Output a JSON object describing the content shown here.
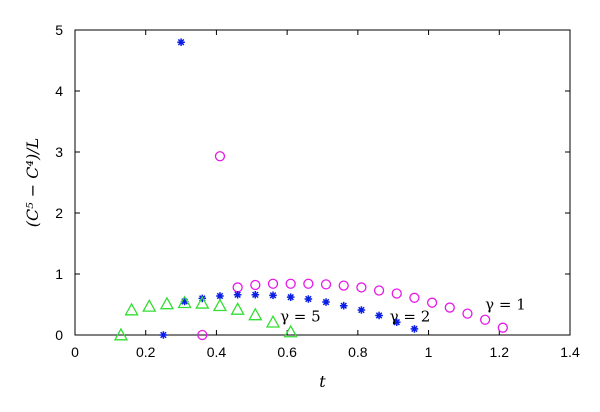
{
  "chart_data": {
    "type": "scatter",
    "title": "",
    "xlabel": "t",
    "ylabel": "(C⁵ − C⁴)/L",
    "xlim": [
      0,
      1.4
    ],
    "ylim": [
      0,
      5
    ],
    "x_ticks": [
      0,
      0.2,
      0.4,
      0.6,
      0.8,
      1,
      1.2,
      1.4
    ],
    "x_tick_labels": [
      "0",
      "0.2",
      "0.4",
      "0.6",
      "0.8",
      "1",
      "1.2",
      "1.4"
    ],
    "y_ticks": [
      0,
      1,
      2,
      3,
      4,
      5
    ],
    "y_tick_labels": [
      "0",
      "1",
      "2",
      "3",
      "4",
      "5"
    ],
    "grid": false,
    "series": [
      {
        "label": "γ = 1",
        "marker": "circle",
        "color": "#e619e6",
        "x": [
          0.36,
          0.41,
          0.46,
          0.51,
          0.56,
          0.61,
          0.66,
          0.71,
          0.76,
          0.81,
          0.86,
          0.91,
          0.96,
          1.01,
          1.06,
          1.11,
          1.16,
          1.21
        ],
        "y": [
          0.0,
          2.93,
          0.78,
          0.82,
          0.84,
          0.84,
          0.84,
          0.83,
          0.81,
          0.78,
          0.73,
          0.68,
          0.61,
          0.53,
          0.45,
          0.35,
          0.25,
          0.12
        ]
      },
      {
        "label": "γ = 2",
        "marker": "star",
        "color": "#0a1ee6",
        "x": [
          0.25,
          0.3,
          0.31,
          0.36,
          0.41,
          0.46,
          0.51,
          0.56,
          0.61,
          0.66,
          0.71,
          0.76,
          0.81,
          0.86,
          0.91,
          0.96
        ],
        "y": [
          0.0,
          4.8,
          0.55,
          0.6,
          0.64,
          0.66,
          0.66,
          0.65,
          0.62,
          0.59,
          0.54,
          0.48,
          0.41,
          0.32,
          0.21,
          0.1
        ]
      },
      {
        "label": "γ = 5",
        "marker": "triangle",
        "color": "#33dd33",
        "x": [
          0.13,
          0.16,
          0.21,
          0.26,
          0.31,
          0.36,
          0.41,
          0.46,
          0.51,
          0.56,
          0.61
        ],
        "y": [
          0.0,
          0.41,
          0.47,
          0.51,
          0.53,
          0.52,
          0.48,
          0.42,
          0.33,
          0.21,
          0.05
        ]
      }
    ],
    "annotations": [
      {
        "text": "γ = 1",
        "x": 1.16,
        "y": 0.42
      },
      {
        "text": "γ = 2",
        "x": 0.89,
        "y": 0.22
      },
      {
        "text": "γ = 5",
        "x": 0.58,
        "y": 0.22
      }
    ]
  }
}
